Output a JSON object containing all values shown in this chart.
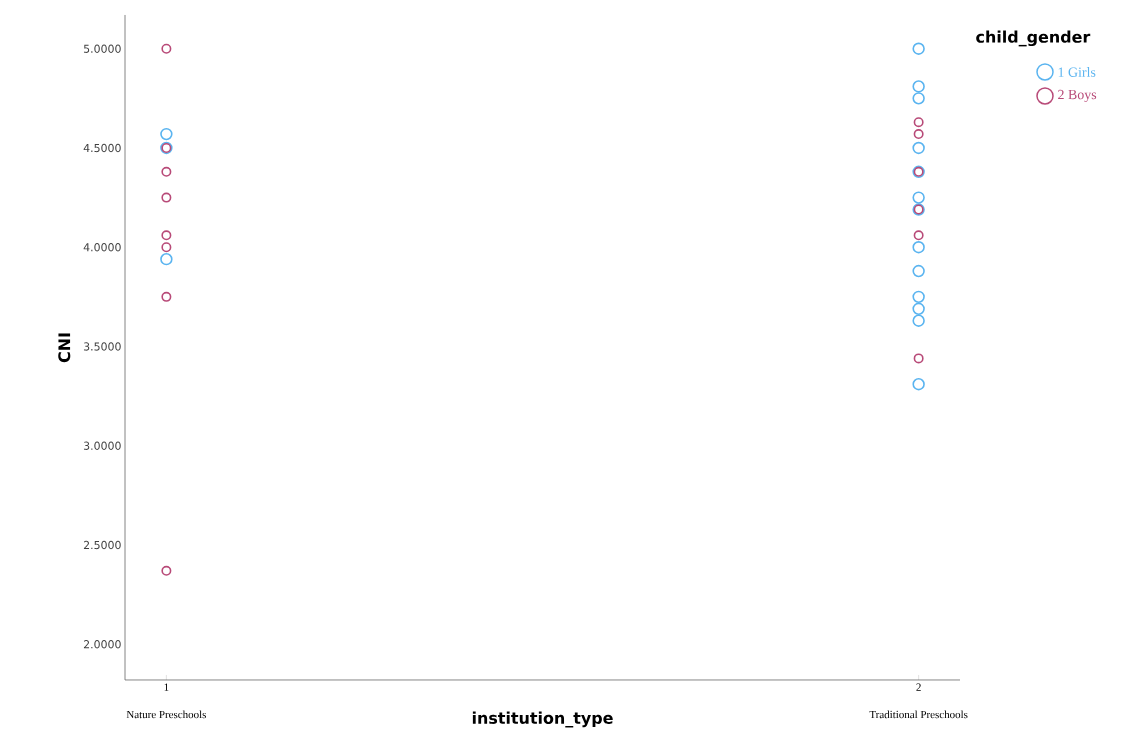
{
  "chart_data": {
    "type": "scatter",
    "xlabel": "institution_type",
    "ylabel": "CNI",
    "legend_title": "child_gender",
    "categories": [
      "1",
      "2"
    ],
    "annotations": [
      "Nature Preschools",
      "Traditional Preschools"
    ],
    "series": [
      {
        "name": "1 Girls",
        "color": "#5ab4f0",
        "x": [
          "1",
          "1",
          "1",
          "2",
          "2",
          "2",
          "2",
          "2",
          "2",
          "2",
          "2",
          "2",
          "2",
          "2",
          "2",
          "2"
        ],
        "values": [
          4.57,
          4.5,
          3.94,
          5.0,
          4.81,
          4.75,
          4.5,
          4.38,
          4.25,
          4.19,
          4.0,
          3.88,
          3.75,
          3.69,
          3.63,
          3.31
        ]
      },
      {
        "name": "2 Boys",
        "color": "#b84a78",
        "x": [
          "1",
          "1",
          "1",
          "1",
          "1",
          "1",
          "1",
          "1",
          "2",
          "2",
          "2",
          "2",
          "2",
          "2"
        ],
        "values": [
          5.0,
          4.5,
          4.38,
          4.25,
          4.06,
          4.0,
          3.75,
          2.37,
          4.63,
          4.57,
          4.38,
          4.19,
          4.06,
          3.44
        ]
      }
    ],
    "ylim": [
      1.82,
      5.17
    ],
    "yticks": [
      {
        "value": 2,
        "label": "2.0000"
      },
      {
        "value": 2.5,
        "label": "2.5000"
      },
      {
        "value": 3,
        "label": "3.0000"
      },
      {
        "value": 3.5,
        "label": "3.5000"
      },
      {
        "value": 4,
        "label": "4.0000"
      },
      {
        "value": 4.5,
        "label": "4.5000"
      },
      {
        "value": 5,
        "label": "5.0000"
      }
    ],
    "grid": false,
    "legend": "top right",
    "marker": "circle"
  }
}
